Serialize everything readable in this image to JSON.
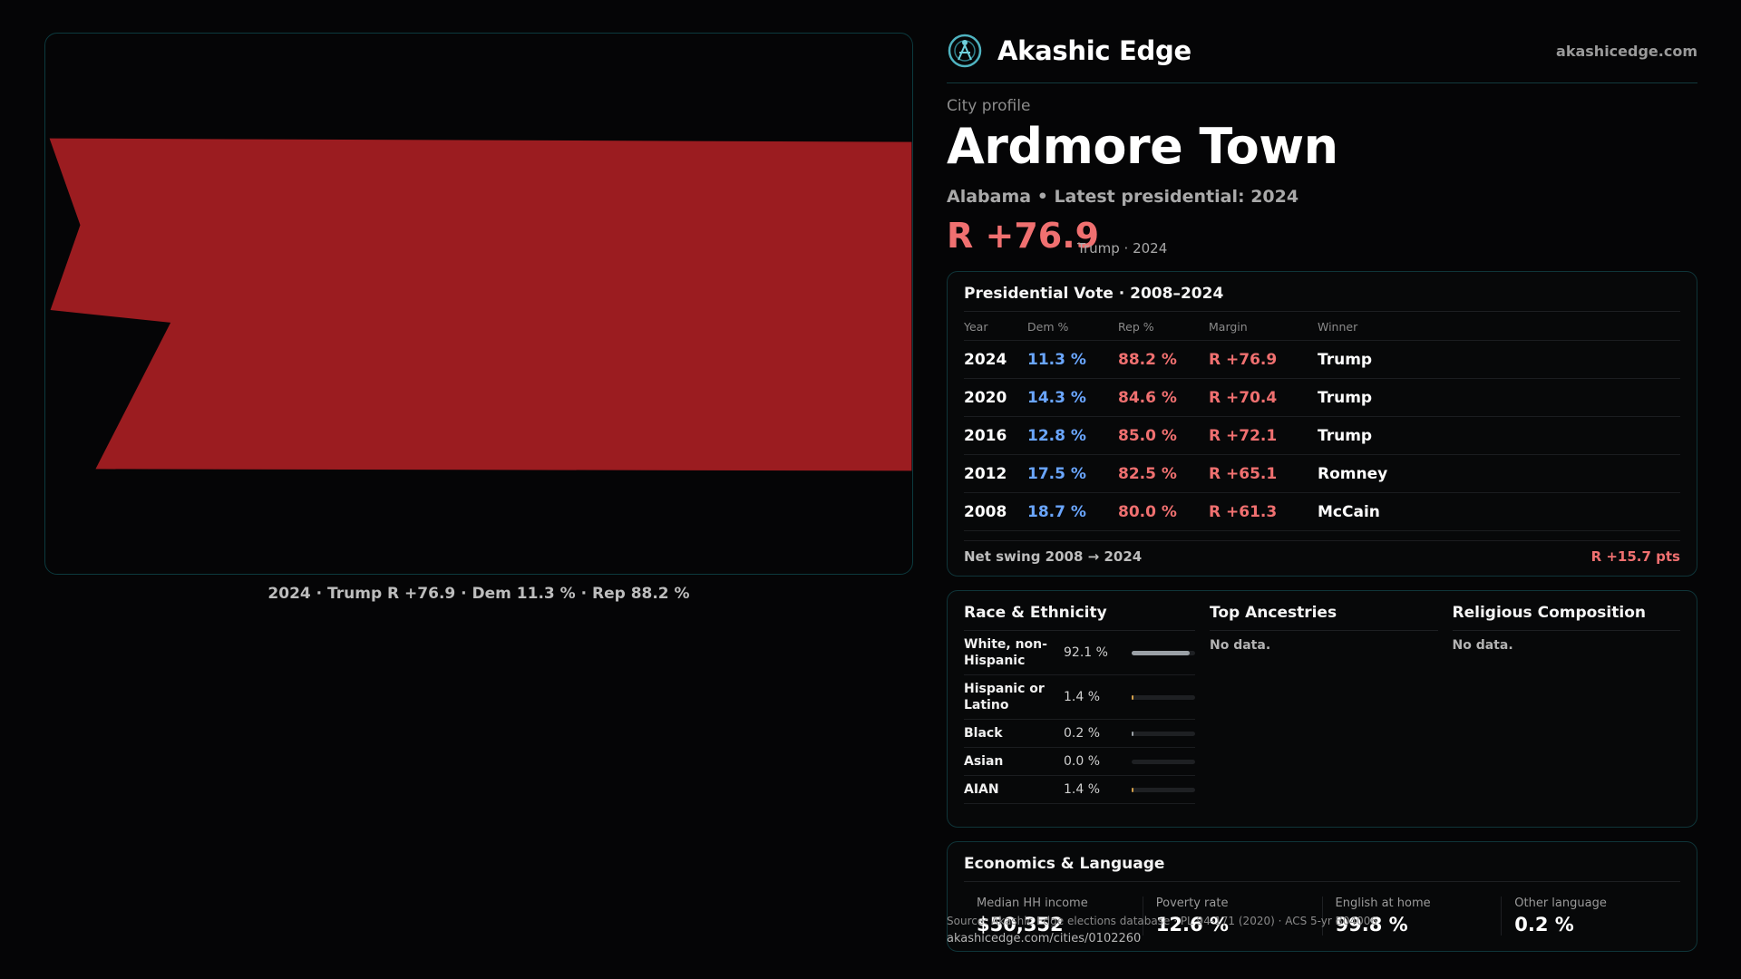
{
  "brand": {
    "name": "Akashic Edge",
    "site": "akashicedge.com"
  },
  "profile": {
    "kicker": "City profile",
    "title": "Ardmore Town",
    "subtitle": "Alabama • Latest presidential: 2024",
    "margin": "R +76.9",
    "margin_note": "Trump · 2024"
  },
  "map": {
    "caption": "2024 · Trump R +76.9 · Dem 11.3 % · Rep 88.2 %",
    "fill_color": "#9b1c20"
  },
  "vote": {
    "title": "Presidential Vote · 2008–2024",
    "headers": [
      "Year",
      "Dem %",
      "Rep %",
      "Margin",
      "Winner"
    ],
    "rows": [
      {
        "year": "2024",
        "dem": "11.3 %",
        "rep": "88.2 %",
        "margin": "R +76.9",
        "winner": "Trump"
      },
      {
        "year": "2020",
        "dem": "14.3 %",
        "rep": "84.6 %",
        "margin": "R +70.4",
        "winner": "Trump"
      },
      {
        "year": "2016",
        "dem": "12.8 %",
        "rep": "85.0 %",
        "margin": "R +72.1",
        "winner": "Trump"
      },
      {
        "year": "2012",
        "dem": "17.5 %",
        "rep": "82.5 %",
        "margin": "R +65.1",
        "winner": "Romney"
      },
      {
        "year": "2008",
        "dem": "18.7 %",
        "rep": "80.0 %",
        "margin": "R +61.3",
        "winner": "McCain"
      }
    ],
    "swing_label": "Net swing 2008 → 2024",
    "swing_value": "R +15.7 pts"
  },
  "race": {
    "title": "Race & Ethnicity",
    "rows": [
      {
        "label": "White, non-Hispanic",
        "value": "92.1 %",
        "share": 0.921,
        "color": "#9aa0a6"
      },
      {
        "label": "Hispanic or Latino",
        "value": "1.4 %",
        "share": 0.014,
        "color": "#d4a04a"
      },
      {
        "label": "Black",
        "value": "0.2 %",
        "share": 0.002,
        "color": "#9aa0a6"
      },
      {
        "label": "Asian",
        "value": "0.0 %",
        "share": 0.0,
        "color": "#9aa0a6"
      },
      {
        "label": "AIAN",
        "value": "1.4 %",
        "share": 0.014,
        "color": "#d4a04a"
      }
    ]
  },
  "ancestries": {
    "title": "Top Ancestries",
    "empty": "No data."
  },
  "religion": {
    "title": "Religious Composition",
    "empty": "No data."
  },
  "econ": {
    "title": "Economics & Language",
    "items": [
      {
        "label": "Median HH income",
        "value": "$50,352"
      },
      {
        "label": "Poverty rate",
        "value": "12.6 %"
      },
      {
        "label": "English at home",
        "value": "99.8 %"
      },
      {
        "label": "Other language",
        "value": "0.2 %"
      }
    ]
  },
  "source": {
    "text": "Source: Akashic Edge elections database · PL 94-171 (2020) · ACS 5-yr B04006",
    "url": "akashicedge.com/cities/0102260"
  }
}
